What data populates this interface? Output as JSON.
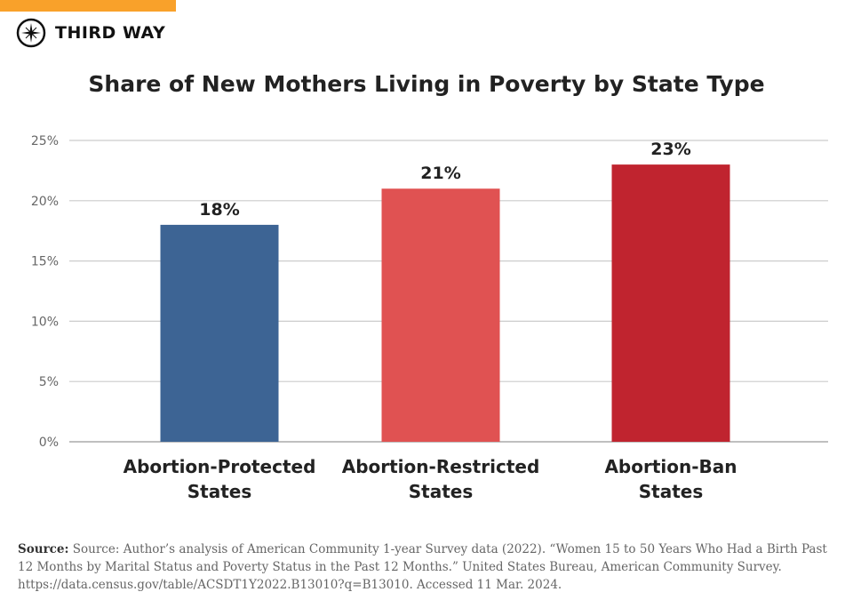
{
  "brand": {
    "name": "THIRD WAY",
    "accent": "#f9a12a"
  },
  "chart_data": {
    "type": "bar",
    "title": "Share of New Mothers Living in Poverty by State Type",
    "categories": [
      [
        "Abortion-Protected",
        "States"
      ],
      [
        "Abortion-Restricted",
        "States"
      ],
      [
        "Abortion-Ban",
        "States"
      ]
    ],
    "values": [
      18,
      21,
      23
    ],
    "data_labels": [
      "18%",
      "21%",
      "23%"
    ],
    "colors": [
      "#3d6494",
      "#e05252",
      "#c0242f"
    ],
    "ylim": [
      0,
      25
    ],
    "yticks": [
      0,
      5,
      10,
      15,
      20,
      25
    ],
    "ytick_labels": [
      "0%",
      "5%",
      "10%",
      "15%",
      "20%",
      "25%"
    ],
    "grid": true,
    "xlabel": "",
    "ylabel": ""
  },
  "source": {
    "label": "Source:",
    "text": "Source: Author’s analysis of American Community 1-year Survey data (2022). “Women 15 to 50 Years Who Had a Birth Past 12 Months by Marital Status and Poverty Status in the Past 12 Months.” United States Bureau, American Community Survey. https://data.census.gov/table/ACSDT1Y2022.B13010?q=B13010. Accessed 11 Mar. 2024."
  }
}
